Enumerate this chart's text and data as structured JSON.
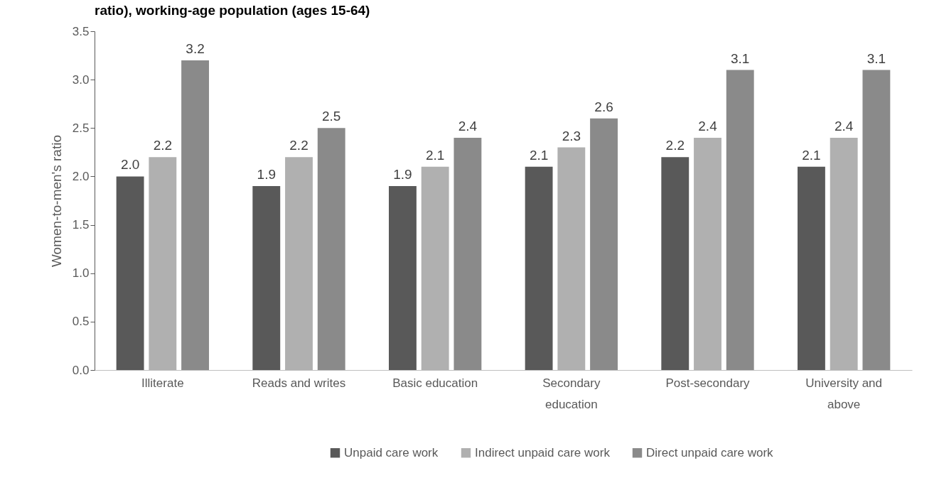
{
  "chart_data": {
    "type": "bar",
    "title": "ratio), working-age population (ages 15-64)",
    "ylabel": "Women-to-men's ratio",
    "categories": [
      "Illiterate",
      "Reads and writes",
      "Basic education",
      "Secondary education",
      "Post-secondary",
      "University and above"
    ],
    "series": [
      {
        "name": "Unpaid care work",
        "color": "#595959",
        "values": [
          2.0,
          1.9,
          1.9,
          2.1,
          2.2,
          2.1
        ],
        "value_labels": [
          "2.0",
          "1.9",
          "1.9",
          "2.1",
          "2.2",
          "2.1"
        ]
      },
      {
        "name": "Indirect unpaid care work",
        "color": "#b0b0b0",
        "values": [
          2.2,
          2.2,
          2.1,
          2.3,
          2.4,
          2.4
        ],
        "value_labels": [
          "2.2",
          "2.2",
          "2.1",
          "2.3",
          "2.4",
          "2.4"
        ]
      },
      {
        "name": "Direct unpaid care work",
        "color": "#8a8a8a",
        "values": [
          3.2,
          2.5,
          2.4,
          2.6,
          3.1,
          3.1
        ],
        "value_labels": [
          "3.2",
          "2.5",
          "2.4",
          "2.6",
          "3.1",
          "3.1"
        ]
      }
    ],
    "ylim": [
      0,
      3.5
    ],
    "yticks": [
      {
        "value": 0,
        "label": "0.0"
      },
      {
        "value": 0.5,
        "label": "0.5"
      },
      {
        "value": 1,
        "label": "1.0"
      },
      {
        "value": 1.5,
        "label": "1.5"
      },
      {
        "value": 2,
        "label": "2.0"
      },
      {
        "value": 2.5,
        "label": "2.5"
      },
      {
        "value": 3,
        "label": "3.0"
      },
      {
        "value": 3.5,
        "label": "3.5"
      }
    ],
    "grid": false,
    "legend": "bottom"
  }
}
